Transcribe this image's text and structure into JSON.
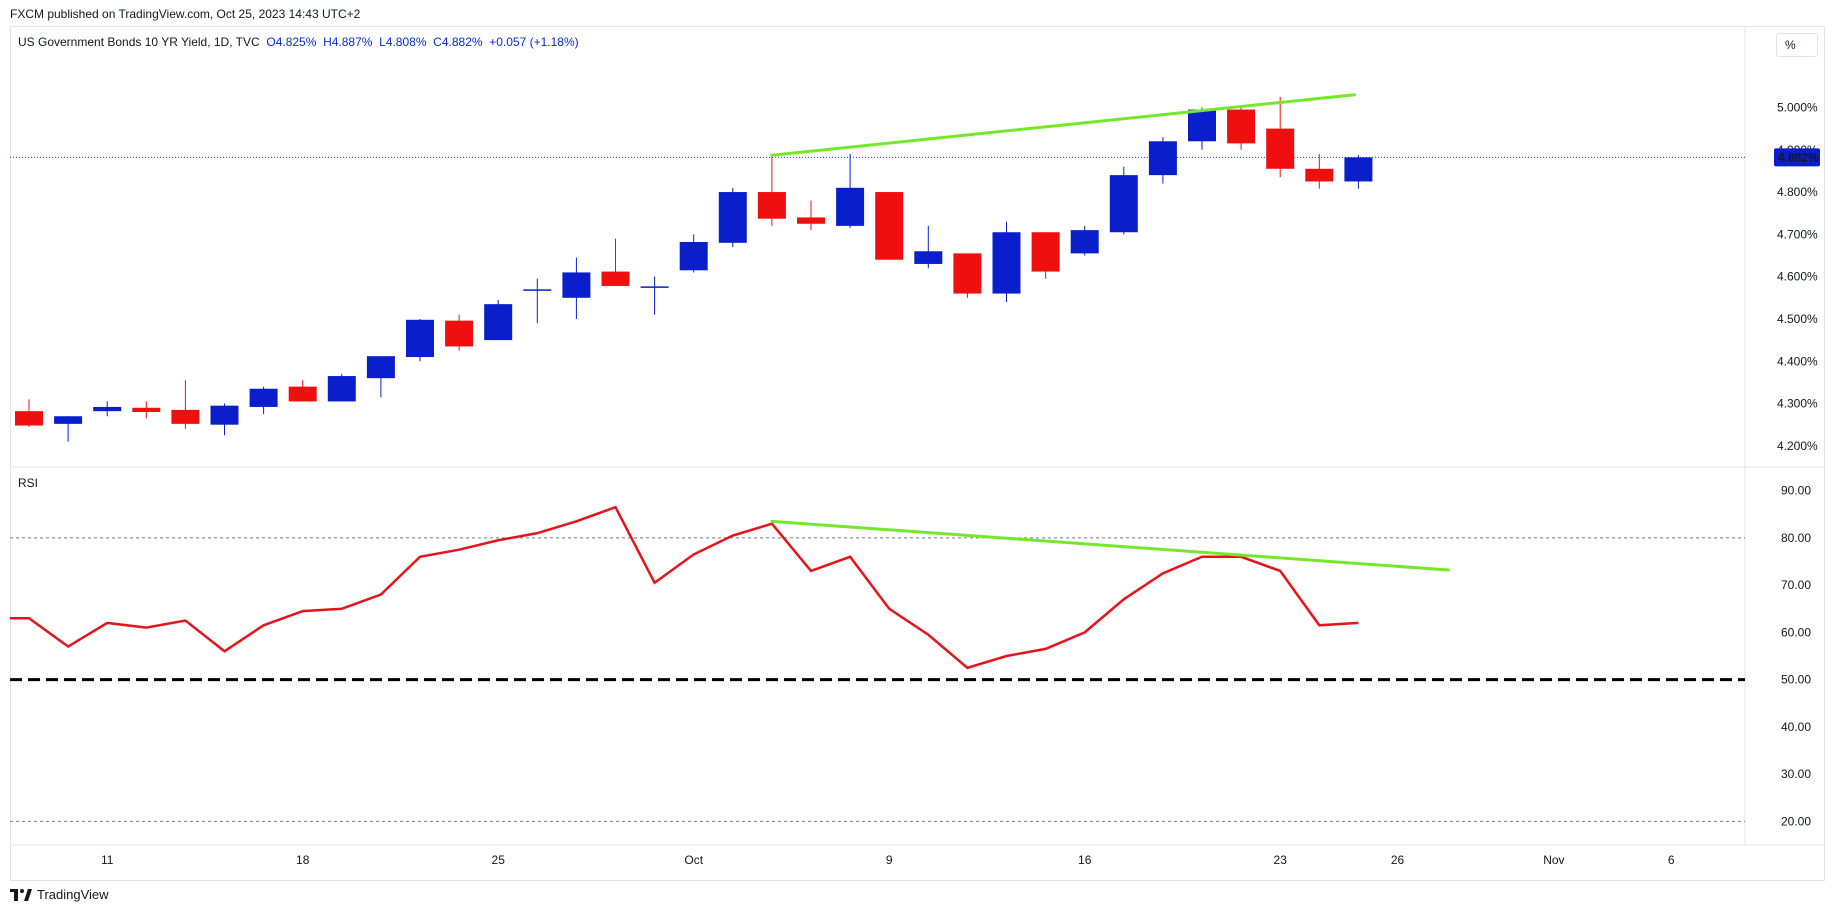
{
  "header": {
    "publisher": "FXCM published on TradingView.com, Oct 25, 2023 14:43 UTC+2",
    "symbol": "US Government Bonds 10 YR Yield, 1D, TVC",
    "open": "O4.825%",
    "high": "H4.887%",
    "low": "L4.808%",
    "close": "C4.882%",
    "change": "+0.057 (+1.18%)"
  },
  "percent_button": "%",
  "rsi_label": "RSI",
  "footer": {
    "brand": "TradingView",
    "logo": "tradingview-logo-icon"
  },
  "colors": {
    "up": "#0a1fcb",
    "down": "#f00f0f",
    "trendline": "#76e82a",
    "rsi": "#e5141a",
    "price_label_bg": "#0a1fcb"
  },
  "chart_data": [
    {
      "type": "candlestick",
      "title": "US Government Bonds 10 YR Yield, 1D, TVC",
      "ylim": [
        4.15,
        5.15
      ],
      "y_ticks": [
        "4.200%",
        "4.300%",
        "4.400%",
        "4.500%",
        "4.600%",
        "4.700%",
        "4.800%",
        "4.900%",
        "5.000%"
      ],
      "y_tick_values": [
        4.2,
        4.3,
        4.4,
        4.5,
        4.6,
        4.7,
        4.8,
        4.9,
        5.0
      ],
      "last_price_label": "4.882%",
      "last_price": 4.882,
      "x_ticks": [
        {
          "label": "11",
          "index": 2
        },
        {
          "label": "18",
          "index": 7
        },
        {
          "label": "25",
          "index": 12
        },
        {
          "label": "Oct",
          "index": 17
        },
        {
          "label": "9",
          "index": 22
        },
        {
          "label": "16",
          "index": 27
        },
        {
          "label": "23",
          "index": 32
        },
        {
          "label": "26",
          "index": 35
        },
        {
          "label": "Nov",
          "index": 39
        },
        {
          "label": "6",
          "index": 42
        }
      ],
      "candles": [
        {
          "o": 4.282,
          "h": 4.31,
          "l": 4.245,
          "c": 4.248
        },
        {
          "o": 4.252,
          "h": 4.27,
          "l": 4.21,
          "c": 4.27
        },
        {
          "o": 4.282,
          "h": 4.305,
          "l": 4.27,
          "c": 4.292
        },
        {
          "o": 4.29,
          "h": 4.305,
          "l": 4.265,
          "c": 4.28
        },
        {
          "o": 4.285,
          "h": 4.355,
          "l": 4.24,
          "c": 4.252
        },
        {
          "o": 4.25,
          "h": 4.3,
          "l": 4.225,
          "c": 4.295
        },
        {
          "o": 4.292,
          "h": 4.34,
          "l": 4.275,
          "c": 4.335
        },
        {
          "o": 4.34,
          "h": 4.355,
          "l": 4.305,
          "c": 4.305
        },
        {
          "o": 4.305,
          "h": 4.37,
          "l": 4.305,
          "c": 4.365
        },
        {
          "o": 4.36,
          "h": 4.41,
          "l": 4.315,
          "c": 4.412
        },
        {
          "o": 4.41,
          "h": 4.5,
          "l": 4.4,
          "c": 4.498
        },
        {
          "o": 4.496,
          "h": 4.51,
          "l": 4.425,
          "c": 4.435
        },
        {
          "o": 4.45,
          "h": 4.545,
          "l": 4.45,
          "c": 4.535
        },
        {
          "o": 4.57,
          "h": 4.595,
          "l": 4.49,
          "c": 4.57
        },
        {
          "o": 4.55,
          "h": 4.645,
          "l": 4.5,
          "c": 4.61
        },
        {
          "o": 4.612,
          "h": 4.69,
          "l": 4.58,
          "c": 4.578
        },
        {
          "o": 4.577,
          "h": 4.6,
          "l": 4.51,
          "c": 4.577
        },
        {
          "o": 4.615,
          "h": 4.7,
          "l": 4.61,
          "c": 4.682
        },
        {
          "o": 4.68,
          "h": 4.81,
          "l": 4.67,
          "c": 4.8
        },
        {
          "o": 4.8,
          "h": 4.887,
          "l": 4.72,
          "c": 4.737
        },
        {
          "o": 4.74,
          "h": 4.78,
          "l": 4.71,
          "c": 4.725
        },
        {
          "o": 4.72,
          "h": 4.89,
          "l": 4.715,
          "c": 4.81
        },
        {
          "o": 4.8,
          "h": 4.8,
          "l": 4.64,
          "c": 4.64
        },
        {
          "o": 4.63,
          "h": 4.72,
          "l": 4.62,
          "c": 4.66
        },
        {
          "o": 4.655,
          "h": 4.655,
          "l": 4.55,
          "c": 4.56
        },
        {
          "o": 4.56,
          "h": 4.73,
          "l": 4.54,
          "c": 4.705
        },
        {
          "o": 4.705,
          "h": 4.705,
          "l": 4.595,
          "c": 4.612
        },
        {
          "o": 4.655,
          "h": 4.72,
          "l": 4.65,
          "c": 4.71
        },
        {
          "o": 4.705,
          "h": 4.86,
          "l": 4.7,
          "c": 4.84
        },
        {
          "o": 4.84,
          "h": 4.93,
          "l": 4.82,
          "c": 4.92
        },
        {
          "o": 4.92,
          "h": 5.0,
          "l": 4.9,
          "c": 4.995
        },
        {
          "o": 4.995,
          "h": 5.0,
          "l": 4.9,
          "c": 4.915
        },
        {
          "o": 4.95,
          "h": 5.025,
          "l": 4.835,
          "c": 4.855
        },
        {
          "o": 4.855,
          "h": 4.89,
          "l": 4.808,
          "c": 4.825
        },
        {
          "o": 4.825,
          "h": 4.887,
          "l": 4.808,
          "c": 4.882
        }
      ],
      "trendline": {
        "from": {
          "index": 19,
          "value": 4.887
        },
        "to": {
          "index": 33.9,
          "value": 5.03
        }
      }
    },
    {
      "type": "line",
      "title": "RSI",
      "ylim": [
        15,
        95
      ],
      "y_ticks": [
        "20.00",
        "30.00",
        "40.00",
        "50.00",
        "60.00",
        "70.00",
        "80.00",
        "90.00"
      ],
      "y_tick_values": [
        20,
        30,
        40,
        50,
        60,
        70,
        80,
        90
      ],
      "levels": {
        "upper": 80,
        "middle": 50,
        "lower": 20
      },
      "values": [
        63,
        57,
        62,
        61,
        62.5,
        56,
        61.5,
        64.5,
        65,
        68,
        76,
        77.5,
        79.5,
        81,
        83.5,
        86.5,
        70.5,
        76.5,
        80.5,
        83,
        73,
        76,
        65,
        59.5,
        52.5,
        55,
        56.5,
        60,
        67,
        72.5,
        76,
        76,
        73,
        61.5,
        62
      ],
      "trendline": {
        "from": {
          "index": 19,
          "value": 83.5
        },
        "to": {
          "index": 36.3,
          "value": 73.2
        }
      }
    }
  ]
}
